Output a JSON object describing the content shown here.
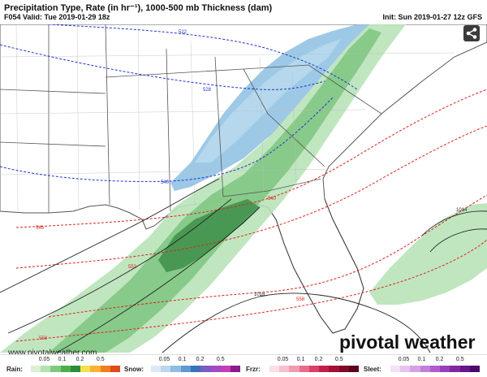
{
  "header": {
    "title": "Precipitation Type, Rate (in hr⁻¹), 1000-500 mb Thickness (dam)",
    "valid": "F054 Valid: Tue 2019-01-29 18z",
    "init": "Init: Sun 2019-01-27 12z GFS"
  },
  "map": {
    "thickness_labels": [
      "522",
      "528",
      "540",
      "540",
      "546",
      "552",
      "558",
      "558"
    ],
    "pressure_labels": [
      "1014",
      "1018"
    ],
    "colors": {
      "ocean": "#ffffff",
      "land": "#ffffff",
      "border": "#555555",
      "rain_light": "#b9e3b9",
      "rain_mid": "#7cc47f",
      "rain_heavy": "#3d8f4a",
      "snow_light": "#bcdcef",
      "snow_mid": "#8cc0e2",
      "snow_heavy": "#5a94cc",
      "thickness_cold": "#2233cc",
      "thickness_warm": "#dd2222",
      "isobar": "#222222"
    }
  },
  "branding": {
    "credit": "www.pivotalweather.com",
    "brand": "pivotal weather",
    "share_icon": "share-icon"
  },
  "legend": {
    "groups": [
      {
        "name": "Rain:",
        "ticks": [
          "0.05",
          "0.1",
          "0.2",
          "0.5"
        ],
        "colors": [
          "#d9f0d3",
          "#b3e2b0",
          "#7fc97f",
          "#4daf4a",
          "#2e8b3a",
          "#f2e14c",
          "#f9b234",
          "#f07e1f",
          "#e04a1c"
        ]
      },
      {
        "name": "Snow:",
        "ticks": [
          "0.05",
          "0.1",
          "0.2",
          "0.5"
        ],
        "colors": [
          "#dbe9f6",
          "#bcd6ee",
          "#8fbde2",
          "#5e9bd1",
          "#3a73b8",
          "#7b5cc0",
          "#a24bc2",
          "#c33fb3",
          "#8b1a8b"
        ]
      },
      {
        "name": "Frzr:",
        "ticks": [
          "0.05",
          "0.1",
          "0.2",
          "0.5"
        ],
        "colors": [
          "#fbe0e6",
          "#f6c0cc",
          "#f09bb0",
          "#e86d8c",
          "#dc3f66",
          "#c41f4a",
          "#a31036",
          "#7d0a27",
          "#5a0519"
        ]
      },
      {
        "name": "Sleet:",
        "ticks": [
          "0.05",
          "0.1",
          "0.2",
          "0.5"
        ],
        "colors": [
          "#f3e1f6",
          "#e6c4ef",
          "#d6a2e5",
          "#c47fd9",
          "#b05dcc",
          "#9a3fba",
          "#8227a3",
          "#681689",
          "#4d086c"
        ]
      }
    ]
  }
}
